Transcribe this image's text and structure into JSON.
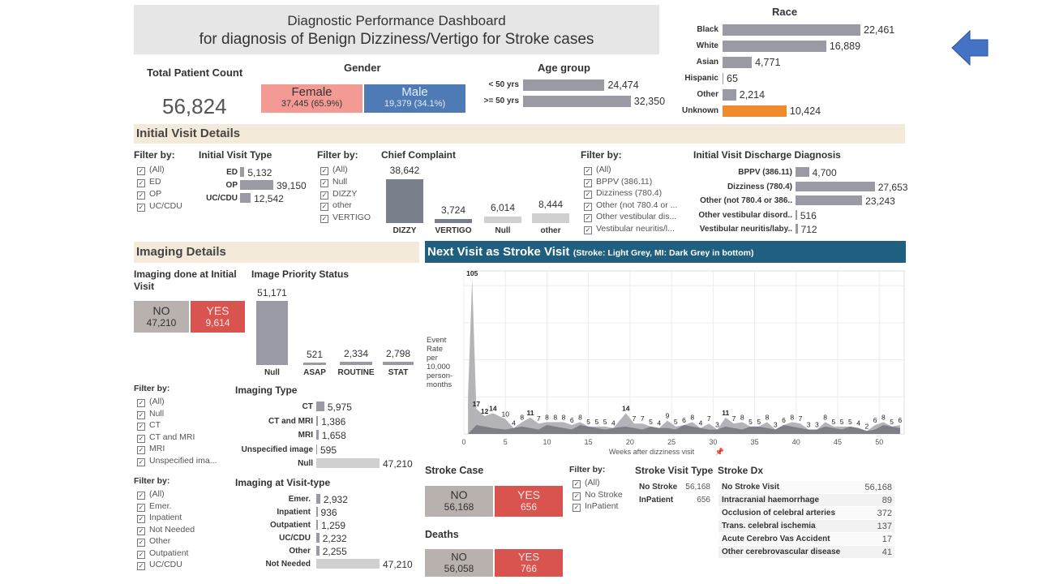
{
  "title": {
    "line1": "Diagnostic Performance Dashboard",
    "line2": "for diagnosis of Benign Dizziness/Vertigo for Stroke cases"
  },
  "total": {
    "label": "Total Patient Count",
    "value": "56,824"
  },
  "gender": {
    "title": "Gender",
    "female_label": "Female",
    "female_value": "37,445 (65.9%)",
    "male_label": "Male",
    "male_value": "19,379 (34.1%)",
    "female_color": "#f49a94",
    "male_color": "#4e7bb5"
  },
  "age": {
    "title": "Age group",
    "rows": [
      {
        "label": "< 50 yrs",
        "value": 24474,
        "display": "24,474"
      },
      {
        "label": ">= 50 yrs",
        "value": 32350,
        "display": "32,350"
      }
    ]
  },
  "race": {
    "title": "Race",
    "rows": [
      {
        "label": "Black",
        "value": 22461,
        "display": "22,461"
      },
      {
        "label": "White",
        "value": 16889,
        "display": "16,889"
      },
      {
        "label": "Asian",
        "value": 4771,
        "display": "4,771"
      },
      {
        "label": "Hispanic",
        "value": 65,
        "display": "65"
      },
      {
        "label": "Other",
        "value": 2214,
        "display": "2,214"
      },
      {
        "label": "Unknown",
        "value": 10424,
        "display": "10,424"
      }
    ]
  },
  "initial_visit": {
    "section": "Initial Visit Details",
    "filter1": {
      "header": "Filter by:",
      "items": [
        "(All)",
        "ED",
        "OP",
        "UC/CDU"
      ]
    },
    "visit_type": {
      "title": "Initial Visit Type",
      "rows": [
        {
          "label": "ED",
          "value": 5132,
          "display": "5,132"
        },
        {
          "label": "OP",
          "value": 39150,
          "display": "39,150"
        },
        {
          "label": "UC/CDU",
          "value": 12542,
          "display": "12,542"
        }
      ]
    },
    "filter2": {
      "header": "Filter by:",
      "items": [
        "(All)",
        "Null",
        "DIZZY",
        "other",
        "VERTIGO"
      ]
    },
    "chief_complaint": {
      "title": "Chief Complaint",
      "bars": [
        {
          "label": "DIZZY",
          "value": 38642,
          "display": "38,642"
        },
        {
          "label": "VERTIGO",
          "value": 3724,
          "display": "3,724"
        },
        {
          "label": "Null",
          "value": 6014,
          "display": "6,014"
        },
        {
          "label": "other",
          "value": 8444,
          "display": "8,444"
        }
      ]
    },
    "filter3": {
      "header": "Filter by:",
      "items": [
        "(All)",
        "BPPV (386.11)",
        "Dizziness (780.4)",
        "Other (not 780.4 or ...",
        "Other vestibular dis...",
        "Vestibular neuritis/l..."
      ]
    },
    "discharge": {
      "title": "Initial Visit Discharge Diagnosis",
      "rows": [
        {
          "label": "BPPV (386.11)",
          "value": 4700,
          "display": "4,700"
        },
        {
          "label": "Dizziness (780.4)",
          "value": 27653,
          "display": "27,653"
        },
        {
          "label": "Other (not 780.4 or 386..",
          "value": 23243,
          "display": "23,243"
        },
        {
          "label": "Other vestibular disord..",
          "value": 516,
          "display": "516"
        },
        {
          "label": "Vestibular neuritis/laby..",
          "value": 712,
          "display": "712"
        }
      ]
    }
  },
  "imaging": {
    "section": "Imaging Details",
    "done": {
      "title": "Imaging done at Initial Visit",
      "no_label": "NO",
      "no_value": "47,210",
      "yes_label": "YES",
      "yes_value": "9,614"
    },
    "priority": {
      "title": "Image Priority Status",
      "bars": [
        {
          "label": "Null",
          "value": 51171,
          "display": "51,171"
        },
        {
          "label": "ASAP",
          "value": 521,
          "display": "521"
        },
        {
          "label": "ROUTINE",
          "value": 2334,
          "display": "2,334"
        },
        {
          "label": "STAT",
          "value": 2798,
          "display": "2,798"
        }
      ]
    },
    "filter_type": {
      "header": "Filter by:",
      "items": [
        "(All)",
        "Null",
        "CT",
        "CT and MRI",
        "MRI",
        "Unspecified ima..."
      ]
    },
    "type": {
      "title": "Imaging Type",
      "rows": [
        {
          "label": "CT",
          "value": 5975,
          "display": "5,975"
        },
        {
          "label": "CT and MRI",
          "value": 1386,
          "display": "1,386"
        },
        {
          "label": "MRI",
          "value": 1658,
          "display": "1,658"
        },
        {
          "label": "Unspecified image",
          "value": 595,
          "display": "595"
        },
        {
          "label": "Null",
          "value": 47210,
          "display": "47,210"
        }
      ]
    },
    "filter_visit": {
      "header": "Filter by:",
      "items": [
        "(All)",
        "Emer.",
        "Inpatient",
        "Not Needed",
        "Other",
        "Outpatient",
        "UC/CDU"
      ]
    },
    "visit_type": {
      "title": "Imaging at Visit-type",
      "rows": [
        {
          "label": "Emer.",
          "value": 2932,
          "display": "2,932"
        },
        {
          "label": "Inpatient",
          "value": 936,
          "display": "936"
        },
        {
          "label": "Outpatient",
          "value": 1259,
          "display": "1,259"
        },
        {
          "label": "UC/CDU",
          "value": 2232,
          "display": "2,232"
        },
        {
          "label": "Other",
          "value": 2255,
          "display": "2,255"
        },
        {
          "label": "Not Needed",
          "value": 47210,
          "display": "47,210"
        }
      ]
    }
  },
  "next_visit": {
    "title": "Next Visit as Stroke Visit",
    "subtitle": "(Stroke: Light Grey, MI: Dark Grey in bottom)",
    "ylabel_lines": [
      "Event",
      "Rate",
      "per",
      "10,000",
      "person-",
      "months"
    ],
    "xlabel": "Weeks after dizziness visit"
  },
  "chart_data": {
    "type": "area",
    "title": "Next Visit as Stroke Visit",
    "ylabel": "Event Rate per 10,000 person-months",
    "xlabel": "Weeks after dizziness visit",
    "xlim": [
      0,
      53
    ],
    "ylim": [
      0,
      110
    ],
    "xticks": [
      0,
      5,
      10,
      15,
      20,
      25,
      30,
      35,
      40,
      45,
      50
    ],
    "grid": true,
    "series": [
      {
        "name": "Stroke",
        "values": [
          {
            "x": 1,
            "y": 105
          },
          {
            "x": 1.5,
            "y": 17
          },
          {
            "x": 2.5,
            "y": 12
          },
          {
            "x": 3.5,
            "y": 14
          },
          {
            "x": 5,
            "y": 10
          },
          {
            "x": 6,
            "y": 4
          },
          {
            "x": 7,
            "y": 8
          },
          {
            "x": 8,
            "y": 11
          },
          {
            "x": 9,
            "y": 7
          },
          {
            "x": 10,
            "y": 8
          },
          {
            "x": 11,
            "y": 8
          },
          {
            "x": 12,
            "y": 8
          },
          {
            "x": 13,
            "y": 6
          },
          {
            "x": 14,
            "y": 8
          },
          {
            "x": 15,
            "y": 5
          },
          {
            "x": 16,
            "y": 5
          },
          {
            "x": 17,
            "y": 5
          },
          {
            "x": 18,
            "y": 4
          },
          {
            "x": 19.5,
            "y": 14
          },
          {
            "x": 20.5,
            "y": 7
          },
          {
            "x": 21.5,
            "y": 7
          },
          {
            "x": 22.5,
            "y": 5
          },
          {
            "x": 23.5,
            "y": 4
          },
          {
            "x": 24.5,
            "y": 9
          },
          {
            "x": 25.5,
            "y": 5
          },
          {
            "x": 26.5,
            "y": 6
          },
          {
            "x": 27.5,
            "y": 8
          },
          {
            "x": 28.5,
            "y": 4
          },
          {
            "x": 29.5,
            "y": 7
          },
          {
            "x": 30.5,
            "y": 3
          },
          {
            "x": 31.5,
            "y": 11
          },
          {
            "x": 32.5,
            "y": 7
          },
          {
            "x": 33.5,
            "y": 8
          },
          {
            "x": 34.5,
            "y": 5
          },
          {
            "x": 35.5,
            "y": 5
          },
          {
            "x": 36.5,
            "y": 8
          },
          {
            "x": 37.5,
            "y": 3
          },
          {
            "x": 38.5,
            "y": 6
          },
          {
            "x": 39.5,
            "y": 8
          },
          {
            "x": 40.5,
            "y": 7
          },
          {
            "x": 41.5,
            "y": 3
          },
          {
            "x": 42.5,
            "y": 3
          },
          {
            "x": 43.5,
            "y": 8
          },
          {
            "x": 44.5,
            "y": 5
          },
          {
            "x": 45.5,
            "y": 5
          },
          {
            "x": 46.5,
            "y": 5
          },
          {
            "x": 47.5,
            "y": 4
          },
          {
            "x": 48.5,
            "y": 2
          },
          {
            "x": 49.5,
            "y": 6
          },
          {
            "x": 50.5,
            "y": 8
          },
          {
            "x": 51.5,
            "y": 5
          },
          {
            "x": 52.5,
            "y": 6
          }
        ]
      }
    ]
  },
  "stroke_case": {
    "title": "Stroke Case",
    "no_label": "NO",
    "no_value": "56,168",
    "yes_label": "YES",
    "yes_value": "656"
  },
  "deaths": {
    "title": "Deaths",
    "no_label": "NO",
    "no_value": "56,058",
    "yes_label": "YES",
    "yes_value": "766"
  },
  "stroke_filter": {
    "header": "Filter by:",
    "items": [
      "(All)",
      "No Stroke",
      "InPatient"
    ]
  },
  "stroke_visit_type": {
    "title": "Stroke Visit Type",
    "rows": [
      {
        "label": "No Stroke",
        "value": "56,168"
      },
      {
        "label": "InPatient",
        "value": "656"
      }
    ]
  },
  "stroke_dx": {
    "title": "Stroke Dx",
    "rows": [
      {
        "label": "No Stroke Visit",
        "value": "56,168"
      },
      {
        "label": "Intracranial haemorrhage",
        "value": "89"
      },
      {
        "label": "Occlusion of celebral arteries",
        "value": "372"
      },
      {
        "label": "Trans. celebral ischemia",
        "value": "137"
      },
      {
        "label": "Acute Cerebro Vas Accident",
        "value": "17"
      },
      {
        "label": "Other cerebrovascular disease",
        "value": "41"
      }
    ]
  }
}
